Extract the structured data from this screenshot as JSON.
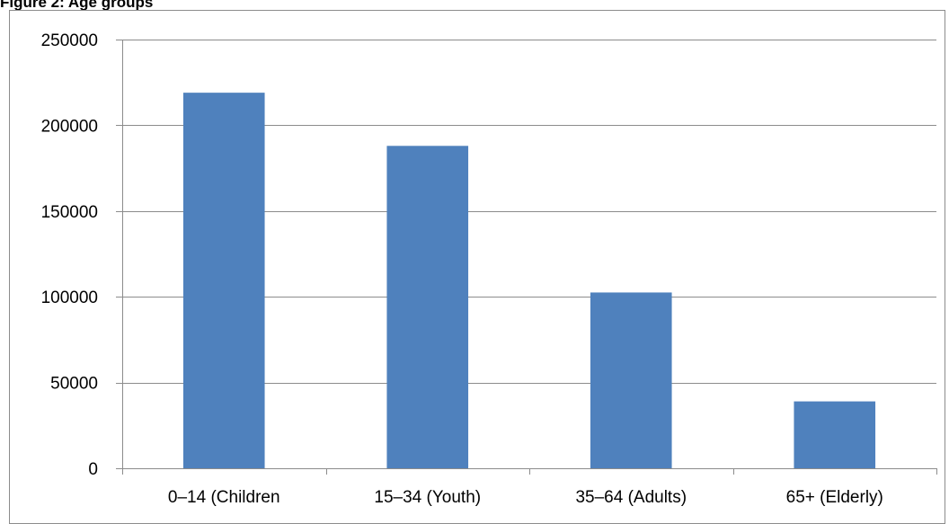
{
  "figure": {
    "caption": "Figure 2: Age groups"
  },
  "chart_data": {
    "type": "bar",
    "title": "",
    "xlabel": "",
    "ylabel": "",
    "categories": [
      "0–14 (Children",
      "15–34 (Youth)",
      "35–64 (Adults)",
      "65+ (Elderly)"
    ],
    "values": [
      219000,
      188000,
      102500,
      39000
    ],
    "ylim": [
      0,
      250000
    ],
    "yticks": [
      0,
      50000,
      100000,
      150000,
      200000,
      250000
    ],
    "ytick_labels": [
      "0",
      "50000",
      "100000",
      "150000",
      "200000",
      "250000"
    ],
    "grid": true,
    "legend": "none",
    "colors": {
      "bar": "#4f81bd",
      "gridline": "#8c8c8c",
      "axis": "#8c8c8c"
    }
  }
}
